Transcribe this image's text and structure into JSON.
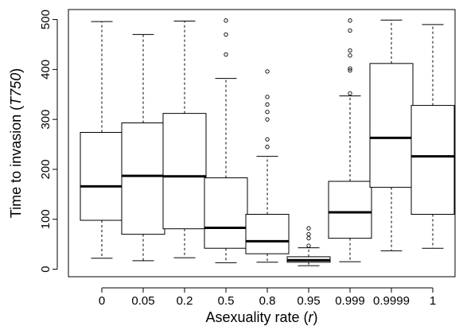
{
  "chart_data": {
    "type": "boxplot",
    "xlabel": {
      "prefix": "Asexuality rate (",
      "symbol": "r",
      "suffix": ")"
    },
    "ylabel": {
      "prefix": "Time to invasion (",
      "symbol": "T750",
      "suffix": ")"
    },
    "ylim": [
      -15,
      520
    ],
    "yticks": [
      0,
      100,
      200,
      300,
      400,
      500
    ],
    "grid": false,
    "categories": [
      "0",
      "0.05",
      "0.2",
      "0.5",
      "0.8",
      "0.95",
      "0.999",
      "0.9999",
      "1"
    ],
    "boxes": [
      {
        "category": "0",
        "min": 22,
        "q1": 98,
        "median": 166,
        "q3": 274,
        "max": 496,
        "outliers": []
      },
      {
        "category": "0.05",
        "min": 17,
        "q1": 70,
        "median": 187,
        "q3": 293,
        "max": 470,
        "outliers": []
      },
      {
        "category": "0.2",
        "min": 23,
        "q1": 81,
        "median": 186,
        "q3": 312,
        "max": 497,
        "outliers": []
      },
      {
        "category": "0.5",
        "min": 13,
        "q1": 42,
        "median": 83,
        "q3": 183,
        "max": 382,
        "outliers": [
          430,
          470,
          498
        ]
      },
      {
        "category": "0.8",
        "min": 14,
        "q1": 31,
        "median": 56,
        "q3": 110,
        "max": 226,
        "outliers": [
          245,
          260,
          300,
          315,
          330,
          345,
          396
        ]
      },
      {
        "category": "0.95",
        "min": 7,
        "q1": 14,
        "median": 18,
        "q3": 25,
        "max": 43,
        "outliers": [
          47,
          62,
          70,
          82
        ]
      },
      {
        "category": "0.999",
        "min": 15,
        "q1": 62,
        "median": 114,
        "q3": 176,
        "max": 347,
        "outliers": [
          352,
          398,
          402,
          428,
          438,
          478,
          498
        ]
      },
      {
        "category": "0.9999",
        "min": 37,
        "q1": 164,
        "median": 263,
        "q3": 412,
        "max": 499,
        "outliers": []
      },
      {
        "category": "1",
        "min": 42,
        "q1": 110,
        "median": 226,
        "q3": 328,
        "max": 490,
        "outliers": []
      }
    ]
  }
}
